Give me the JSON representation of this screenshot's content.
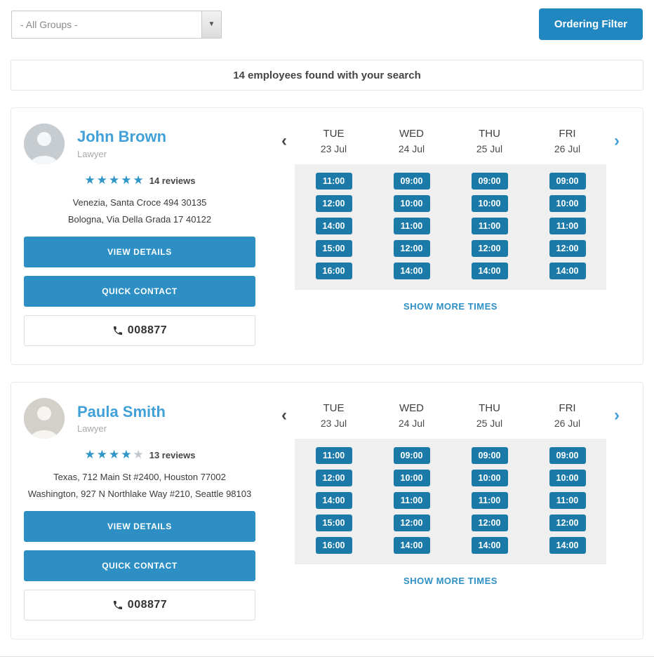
{
  "colors": {
    "accent": "#2d8fc4",
    "chip_blue": "#1b7aa8",
    "name_blue": "#41a0d8"
  },
  "topbar": {
    "group_filter_value": "- All Groups -",
    "group_filter_arrow": "▼",
    "ordering_filter_label": "Ordering Filter"
  },
  "results_bar": {
    "text": "14 employees found with your search"
  },
  "schedule": {
    "prev_icon": "‹",
    "next_icon": "›",
    "days": [
      {
        "name": "TUE",
        "date": "23 Jul"
      },
      {
        "name": "WED",
        "date": "24 Jul"
      },
      {
        "name": "THU",
        "date": "25 Jul"
      },
      {
        "name": "FRI",
        "date": "26 Jul"
      }
    ],
    "times": [
      [
        "11:00",
        "12:00",
        "14:00",
        "15:00",
        "16:00"
      ],
      [
        "09:00",
        "10:00",
        "11:00",
        "12:00",
        "14:00"
      ],
      [
        "09:00",
        "10:00",
        "11:00",
        "12:00",
        "14:00"
      ],
      [
        "09:00",
        "10:00",
        "11:00",
        "12:00",
        "14:00"
      ]
    ],
    "show_more_label": "SHOW MORE TIMES"
  },
  "employees": [
    {
      "name": "John Brown",
      "role": "Lawyer",
      "stars_filled": 5,
      "stars_total": 5,
      "reviews": "14 reviews",
      "addresses": [
        "Venezia, Santa Croce 494 30135",
        "Bologna, Via Della Grada 17 40122"
      ],
      "view_details_label": "VIEW DETAILS",
      "quick_contact_label": "QUICK CONTACT",
      "phone": "008877"
    },
    {
      "name": "Paula Smith",
      "role": "Lawyer",
      "stars_filled": 4,
      "stars_total": 5,
      "reviews": "13 reviews",
      "addresses": [
        "Texas, 712 Main St #2400, Houston 77002",
        "Washington, 927 N Northlake Way #210, Seattle 98103"
      ],
      "view_details_label": "VIEW DETAILS",
      "quick_contact_label": "QUICK CONTACT",
      "phone": "008877"
    }
  ]
}
